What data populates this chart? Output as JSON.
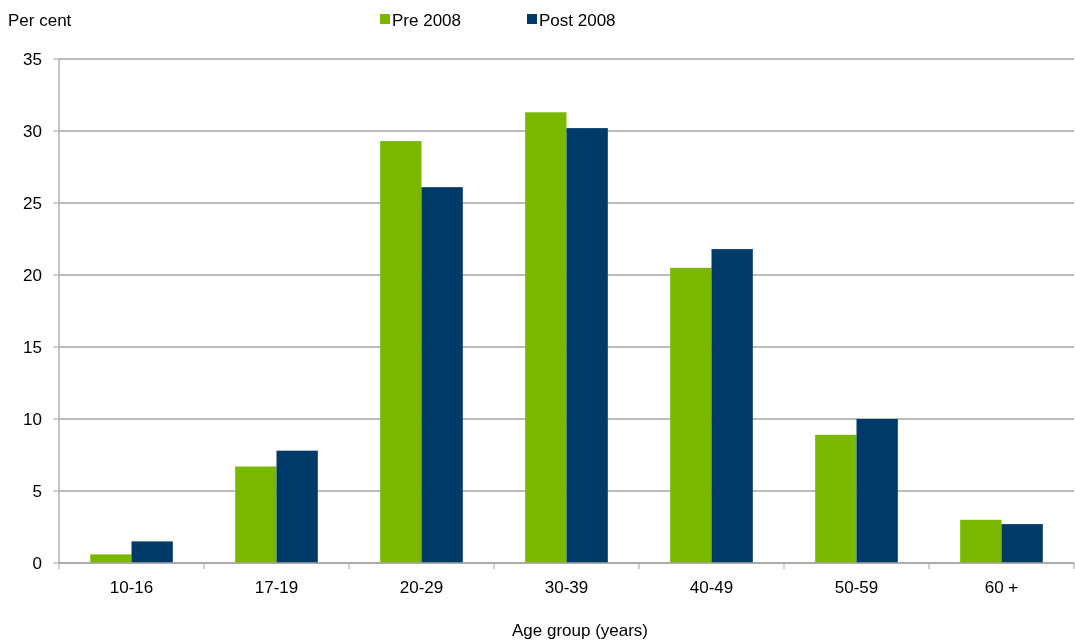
{
  "chart_data": {
    "type": "bar",
    "ylabel": "Per cent",
    "xlabel": "Age group (years)",
    "categories": [
      "10-16",
      "17-19",
      "20-29",
      "30-39",
      "40-49",
      "50-59",
      "60 +"
    ],
    "series": [
      {
        "name": "Pre 2008",
        "color": "#7ab800",
        "values": [
          0.6,
          6.7,
          29.3,
          31.3,
          20.5,
          8.9,
          3.0
        ]
      },
      {
        "name": "Post 2008",
        "color": "#003a68",
        "values": [
          1.5,
          7.8,
          26.1,
          30.2,
          21.8,
          10.0,
          2.7
        ]
      }
    ],
    "ylim": [
      0,
      35
    ],
    "yticks": [
      0,
      5,
      10,
      15,
      20,
      25,
      30,
      35
    ],
    "grid": "y",
    "legend": "top"
  }
}
